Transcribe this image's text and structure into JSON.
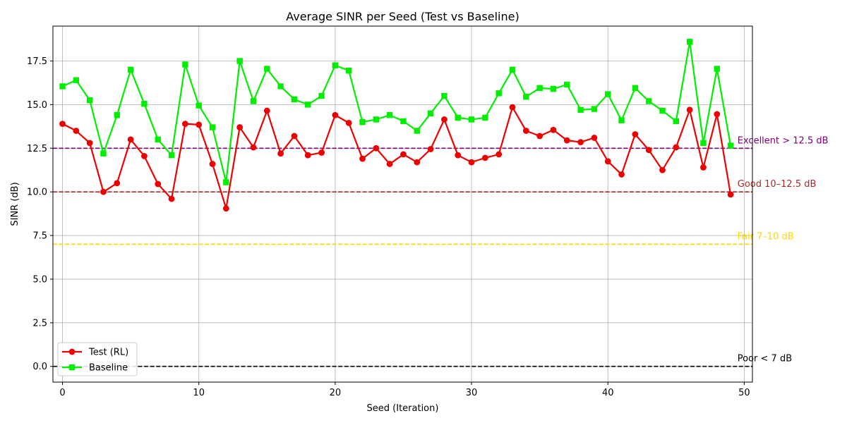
{
  "chart_data": {
    "type": "line",
    "title": "Average SINR per Seed (Test vs Baseline)",
    "xlabel": "Seed (Iteration)",
    "ylabel": "SINR (dB)",
    "xlim": [
      -0.7,
      50.6
    ],
    "ylim": [
      -0.9,
      19.5
    ],
    "xticks": [
      0,
      10,
      20,
      30,
      40,
      50
    ],
    "yticks": [
      0.0,
      2.5,
      5.0,
      7.5,
      10.0,
      12.5,
      15.0,
      17.5
    ],
    "ytick_labels": [
      "0.0",
      "2.5",
      "5.0",
      "7.5",
      "10.0",
      "12.5",
      "15.0",
      "17.5"
    ],
    "grid": true,
    "legend_position": "lower-left",
    "x": [
      0,
      1,
      2,
      3,
      4,
      5,
      6,
      7,
      8,
      9,
      10,
      11,
      12,
      13,
      14,
      15,
      16,
      17,
      18,
      19,
      20,
      21,
      22,
      23,
      24,
      25,
      26,
      27,
      28,
      29,
      30,
      31,
      32,
      33,
      34,
      35,
      36,
      37,
      38,
      39,
      40,
      41,
      42,
      43,
      44,
      45,
      46,
      47,
      48,
      49
    ],
    "series": [
      {
        "name": "Test (RL)",
        "color": "#ee0000",
        "marker": "circle",
        "values": [
          13.9,
          13.5,
          12.8,
          10.0,
          10.5,
          13.0,
          12.05,
          10.45,
          9.6,
          13.9,
          13.85,
          11.6,
          9.05,
          13.7,
          12.55,
          14.65,
          12.2,
          13.2,
          12.1,
          12.25,
          14.4,
          13.95,
          11.9,
          12.5,
          11.6,
          12.15,
          11.7,
          12.45,
          14.15,
          12.1,
          11.7,
          11.95,
          12.15,
          14.85,
          13.5,
          13.2,
          13.55,
          12.95,
          12.85,
          13.1,
          11.75,
          11.0,
          13.3,
          12.4,
          11.25,
          12.55,
          14.7,
          11.4,
          14.45,
          9.85
        ]
      },
      {
        "name": "Baseline",
        "color": "#00ee00",
        "marker": "square",
        "values": [
          16.05,
          16.4,
          15.25,
          12.2,
          14.4,
          17.0,
          15.05,
          13.0,
          12.1,
          17.3,
          14.95,
          13.7,
          10.55,
          17.5,
          15.2,
          17.05,
          16.05,
          15.3,
          15.0,
          15.5,
          17.25,
          16.95,
          14.0,
          14.15,
          14.4,
          14.05,
          13.5,
          14.5,
          15.5,
          14.25,
          14.15,
          14.25,
          15.65,
          17.0,
          15.45,
          15.95,
          15.9,
          16.15,
          14.7,
          14.75,
          15.6,
          14.1,
          15.95,
          15.2,
          14.65,
          14.05,
          18.6,
          12.8,
          17.05,
          12.65
        ]
      }
    ],
    "reference_lines": [
      {
        "label": "Excellent > 12.5 dB",
        "y": 12.5,
        "color": "#800080"
      },
      {
        "label": "Good 10–12.5 dB",
        "y": 10.0,
        "color": "#a52a2a"
      },
      {
        "label": "Fair 7–10 dB",
        "y": 7.0,
        "color": "#ffd700"
      },
      {
        "label": "Poor < 7 dB",
        "y": 0.0,
        "color": "#000000"
      }
    ]
  }
}
